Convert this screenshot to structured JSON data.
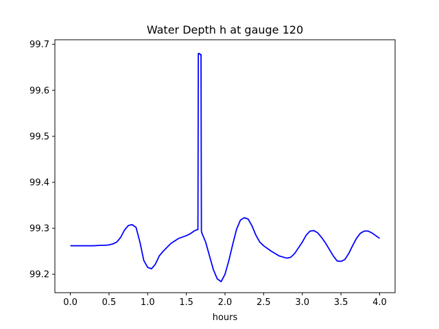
{
  "chart_data": {
    "type": "line",
    "title": "Water Depth h at gauge 120",
    "xlabel": "hours",
    "ylabel": "",
    "xlim": [
      -0.2,
      4.2
    ],
    "ylim": [
      99.16,
      99.71
    ],
    "xticks": [
      0.0,
      0.5,
      1.0,
      1.5,
      2.0,
      2.5,
      3.0,
      3.5,
      4.0
    ],
    "xtick_labels": [
      "0.0",
      "0.5",
      "1.0",
      "1.5",
      "2.0",
      "2.5",
      "3.0",
      "3.5",
      "4.0"
    ],
    "yticks": [
      99.2,
      99.3,
      99.4,
      99.5,
      99.6,
      99.7
    ],
    "ytick_labels": [
      "99.2",
      "99.3",
      "99.4",
      "99.5",
      "99.6",
      "99.7"
    ],
    "grid": false,
    "series": [
      {
        "color": "#0000ff",
        "x": [
          0.0,
          0.1,
          0.2,
          0.3,
          0.4,
          0.45,
          0.5,
          0.55,
          0.6,
          0.65,
          0.7,
          0.75,
          0.8,
          0.85,
          0.9,
          0.95,
          1.0,
          1.05,
          1.1,
          1.15,
          1.2,
          1.3,
          1.4,
          1.5,
          1.55,
          1.6,
          1.64,
          1.65,
          1.655,
          1.67,
          1.675,
          1.69,
          1.695,
          1.7,
          1.75,
          1.8,
          1.85,
          1.9,
          1.95,
          2.0,
          2.05,
          2.1,
          2.15,
          2.2,
          2.25,
          2.3,
          2.35,
          2.4,
          2.45,
          2.5,
          2.6,
          2.7,
          2.8,
          2.85,
          2.9,
          3.0,
          3.05,
          3.1,
          3.15,
          3.2,
          3.25,
          3.3,
          3.35,
          3.4,
          3.45,
          3.5,
          3.55,
          3.6,
          3.65,
          3.7,
          3.75,
          3.8,
          3.85,
          3.9,
          3.95,
          4.0
        ],
        "y": [
          99.262,
          99.262,
          99.262,
          99.262,
          99.263,
          99.263,
          99.264,
          99.266,
          99.27,
          99.28,
          99.296,
          99.306,
          99.308,
          99.302,
          99.27,
          99.23,
          99.215,
          99.212,
          99.222,
          99.24,
          99.25,
          99.267,
          99.278,
          99.284,
          99.288,
          99.294,
          99.297,
          99.297,
          99.68,
          99.68,
          99.678,
          99.678,
          99.294,
          99.29,
          99.27,
          99.24,
          99.21,
          99.19,
          99.184,
          99.2,
          99.23,
          99.265,
          99.298,
          99.318,
          99.323,
          99.32,
          99.305,
          99.285,
          99.27,
          99.262,
          99.25,
          99.24,
          99.235,
          99.237,
          99.245,
          99.27,
          99.285,
          99.294,
          99.295,
          99.29,
          99.28,
          99.268,
          99.254,
          99.24,
          99.229,
          99.228,
          99.232,
          99.245,
          99.262,
          99.278,
          99.289,
          99.294,
          99.294,
          99.29,
          99.284,
          99.278
        ]
      }
    ]
  }
}
